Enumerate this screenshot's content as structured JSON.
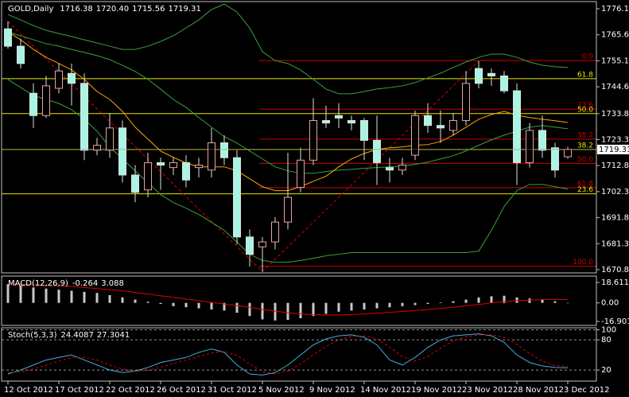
{
  "chart_data": [
    {
      "type": "candlestick",
      "title": "GOLD,Daily",
      "last_bar_labels": [
        "1716.38",
        "1720.40",
        "1715.56",
        "1719.31"
      ],
      "categories": [
        "12 Oct 2012",
        null,
        null,
        null,
        "17 Oct 2012",
        null,
        null,
        null,
        "22 Oct 2012",
        null,
        null,
        null,
        "26 Oct 2012",
        null,
        null,
        null,
        "31 Oct 2012",
        null,
        null,
        null,
        "5 Nov 2012",
        null,
        null,
        null,
        "9 Nov 2012",
        null,
        null,
        null,
        "14 Nov 2012",
        null,
        null,
        null,
        "19 Nov 2012",
        null,
        null,
        null,
        "23 Nov 2012",
        null,
        null,
        null,
        "28 Nov 2012",
        null,
        null,
        null,
        "3 Dec 2012"
      ],
      "open": [
        1768,
        1761,
        1742,
        1733,
        1744,
        1750,
        1746,
        1719,
        1719,
        1728,
        1709,
        1703,
        1714,
        1712,
        1714,
        1712,
        1711,
        1722,
        1716,
        1684,
        1680,
        1682,
        1690,
        1704,
        1715,
        1731,
        1733,
        1731,
        1731,
        1723,
        1712,
        1711,
        1717,
        1733,
        1729,
        1727,
        1731,
        1752,
        1750,
        1749,
        1743,
        1714,
        1727,
        1720,
        1716.38
      ],
      "high": [
        1771,
        1764,
        1746,
        1749,
        1754,
        1754,
        1750,
        1724,
        1734,
        1731,
        1713,
        1718,
        1716,
        1716,
        1717,
        1716,
        1728,
        1725,
        1719,
        1687,
        1684,
        1692,
        1718,
        1720,
        1740,
        1737,
        1738,
        1733,
        1732,
        1733,
        1716,
        1716,
        1735,
        1738,
        1735,
        1734,
        1751,
        1755,
        1752,
        1751,
        1746,
        1730,
        1733,
        1722,
        1720.4
      ],
      "low": [
        1760,
        1752,
        1728,
        1732,
        1742,
        1737,
        1715,
        1717,
        1716,
        1706,
        1698,
        1700,
        1703,
        1709,
        1704,
        1708,
        1708,
        1713,
        1681,
        1672,
        1670,
        1679,
        1687,
        1702,
        1713,
        1728,
        1728,
        1727,
        1715,
        1705,
        1706,
        1709,
        1715,
        1726,
        1722,
        1725,
        1729,
        1744,
        1745,
        1742,
        1705,
        1712,
        1716,
        1708,
        1715.56
      ],
      "close": [
        1761,
        1754,
        1733,
        1745,
        1751,
        1746,
        1719,
        1721,
        1728,
        1709,
        1702,
        1714,
        1713,
        1714,
        1707,
        1713,
        1722,
        1716,
        1684,
        1677,
        1682,
        1690,
        1700,
        1715,
        1731,
        1730,
        1732,
        1730,
        1723,
        1714,
        1711,
        1713,
        1733,
        1729,
        1728,
        1731,
        1746,
        1746,
        1749,
        1743,
        1714,
        1727,
        1719,
        1711,
        1719.31
      ],
      "up_color": "#000000",
      "up_outline": "#e8a0a0",
      "down_color": "#a8f5e3",
      "wick_color": "#e0e0e0",
      "series": [
        {
          "color": "#3ca03c",
          "values": [
            1773.8,
            1771.6,
            1769.3,
            1767.4,
            1766.1,
            1764.9,
            1763.6,
            1762.3,
            1761.0,
            1759.7,
            1759.7,
            1761.0,
            1762.9,
            1765.2,
            1768.4,
            1771.6,
            1775.8,
            1778.0,
            1774.8,
            1768.4,
            1758.8,
            1755.2,
            1754.0,
            1751.4,
            1747.6,
            1743.7,
            1741.8,
            1741.8,
            1742.7,
            1743.7,
            1744.3,
            1745.0,
            1746.3,
            1748.2,
            1750.1,
            1752.4,
            1754.6,
            1756.5,
            1757.8,
            1757.8,
            1756.5,
            1754.6,
            1753.3,
            1752.7,
            1752.4
          ]
        },
        {
          "color": "#3ca03c",
          "values": [
            1766.8,
            1765.2,
            1763.6,
            1762.0,
            1761.0,
            1759.7,
            1758.5,
            1757.2,
            1755.6,
            1753.3,
            1750.8,
            1747.6,
            1743.7,
            1739.5,
            1736.3,
            1732.2,
            1728.3,
            1724.5,
            1721.9,
            1718.7,
            1715.5,
            1712.3,
            1710.7,
            1709.7,
            1709.7,
            1710.4,
            1711.0,
            1711.3,
            1711.7,
            1712.0,
            1712.3,
            1712.6,
            1713.3,
            1714.2,
            1715.5,
            1716.8,
            1718.7,
            1721.0,
            1723.2,
            1725.1,
            1726.7,
            1728.3,
            1729.0,
            1728.3,
            1727.7
          ]
        },
        {
          "color": "#3ca03c",
          "values": [
            1747.6,
            1744.3,
            1741.1,
            1739.5,
            1737.9,
            1735.4,
            1731.5,
            1726.7,
            1720.3,
            1715.5,
            1710.7,
            1705.9,
            1701.1,
            1697.9,
            1695.6,
            1693.1,
            1689.9,
            1686.7,
            1681.9,
            1677.0,
            1674.5,
            1673.8,
            1673.8,
            1674.5,
            1675.4,
            1676.4,
            1677.0,
            1677.7,
            1677.7,
            1677.7,
            1677.7,
            1677.7,
            1677.7,
            1677.7,
            1677.7,
            1677.7,
            1677.7,
            1678.3,
            1686.7,
            1696.3,
            1702.7,
            1705.2,
            1705.2,
            1704.3,
            1703.3
          ]
        },
        {
          "color": "#ffa500",
          "values": [
            1766.8,
            1763.6,
            1759.7,
            1756.5,
            1754.0,
            1751.4,
            1747.6,
            1742.7,
            1739.5,
            1734.7,
            1728.3,
            1723.5,
            1718.7,
            1716.1,
            1713.9,
            1712.3,
            1712.3,
            1712.3,
            1710.7,
            1707.5,
            1704.3,
            1702.7,
            1702.7,
            1704.3,
            1706.5,
            1708.5,
            1712.3,
            1715.5,
            1717.7,
            1719.3,
            1720.0,
            1720.3,
            1721.0,
            1721.3,
            1722.5,
            1725.1,
            1728.3,
            1731.5,
            1733.4,
            1734.7,
            1733.1,
            1732.2,
            1731.5,
            1730.9,
            1730.2
          ]
        }
      ],
      "fibs": [
        {
          "color": "#d00000",
          "levels": [
            {
              "label": "0.0",
              "value": 1755.2
            },
            {
              "label": "23.6",
              "value": 1735.6
            },
            {
              "label": "38.2",
              "value": 1723.5
            },
            {
              "label": "50.0",
              "value": 1713.7
            },
            {
              "label": "61.8",
              "value": 1703.9
            },
            {
              "label": "100.0",
              "value": 1672.2
            }
          ]
        },
        {
          "color": "#e6e600",
          "levels": [
            {
              "label": "61.8",
              "value": 1747.9
            },
            {
              "label": "50.0",
              "value": 1733.8
            },
            {
              "label": "38.2",
              "value": 1719.3
            },
            {
              "label": "23.6",
              "value": 1701.4
            }
          ]
        }
      ],
      "ylim": [
        1669.5,
        1779.0
      ],
      "yticks": [
        {
          "value": 1776.1,
          "label": "1776.10"
        },
        {
          "value": 1765.6,
          "label": "1765.60"
        },
        {
          "value": 1755.1,
          "label": "1755.10"
        },
        {
          "value": 1744.6,
          "label": "1744.60"
        },
        {
          "value": 1733.8,
          "label": "1733.80"
        },
        {
          "value": 1723.3,
          "label": "1723.30"
        },
        {
          "value": 1712.8,
          "label": "1712.80"
        },
        {
          "value": 1702.3,
          "label": "1702.30"
        },
        {
          "value": 1691.8,
          "label": "1691.80"
        },
        {
          "value": 1681.3,
          "label": "1681.30"
        },
        {
          "value": 1670.8,
          "label": "1670.80"
        }
      ]
    },
    {
      "type": "macd",
      "title": "MACD(12,26,9)",
      "series": [
        {
          "color": "#c8c8c8",
          "values": [
            17,
            16,
            14,
            13,
            12,
            11,
            10,
            9,
            7,
            5,
            3,
            1,
            -1,
            -3,
            -4,
            -5,
            -6,
            -7,
            -9,
            -12,
            -15,
            -16,
            -15.5,
            -14,
            -12,
            -10,
            -8,
            -7,
            -6,
            -5,
            -4,
            -3,
            -2,
            -1,
            0.5,
            1.5,
            3,
            5,
            6,
            6.5,
            5,
            4,
            3,
            1.5,
            -0.264
          ]
        },
        {
          "color": "#e00000",
          "values": [
            17,
            17,
            16.5,
            16,
            15.5,
            15,
            14,
            13,
            12,
            11,
            9.5,
            8,
            6.5,
            5,
            3.5,
            2,
            0.5,
            -1,
            -2.5,
            -4,
            -6,
            -7.5,
            -9,
            -10,
            -10.8,
            -11,
            -11,
            -10.6,
            -10,
            -9.4,
            -8.6,
            -7.8,
            -7,
            -6,
            -5,
            -4,
            -2.5,
            -1.5,
            0,
            1.2,
            2,
            2.6,
            3,
            3.1,
            3.088
          ]
        }
      ],
      "ylim": [
        -20.5,
        24.4
      ],
      "yticks": [
        18.611,
        {
          "value": 0,
          "label": "0.00"
        },
        -16.901
      ]
    },
    {
      "type": "line",
      "title": "Stoch(5,3,3)",
      "series": [
        {
          "color": "#4aaad8",
          "dashed": false,
          "values": [
            12,
            20,
            30,
            40,
            45,
            50,
            40,
            30,
            20,
            15,
            18,
            25,
            35,
            40,
            45,
            55,
            62,
            55,
            30,
            12,
            10,
            15,
            30,
            50,
            70,
            82,
            88,
            90,
            85,
            70,
            40,
            30,
            45,
            65,
            80,
            88,
            90,
            92,
            88,
            75,
            50,
            35,
            28,
            25,
            24.4087
          ]
        },
        {
          "color": "#e00000",
          "dashed": true,
          "values": [
            15,
            16,
            22,
            30,
            38,
            45,
            45,
            40,
            30,
            22,
            18,
            19,
            26,
            33,
            40,
            47,
            54,
            57,
            49,
            32,
            17,
            12,
            18,
            32,
            50,
            67,
            80,
            87,
            88,
            82,
            65,
            47,
            38,
            47,
            63,
            78,
            86,
            90,
            90,
            85,
            71,
            53,
            38,
            29,
            27.3041
          ]
        }
      ],
      "ylim": [
        -2,
        104
      ],
      "yticks": [
        100,
        80,
        20
      ],
      "grid": true
    }
  ]
}
